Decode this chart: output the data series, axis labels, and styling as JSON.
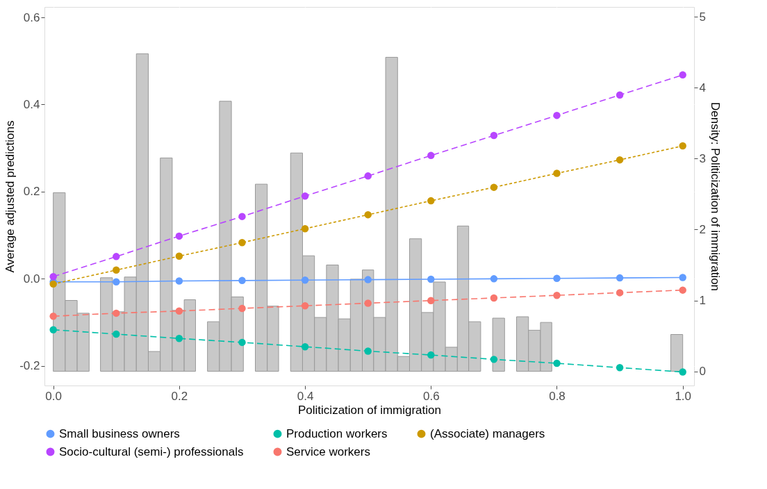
{
  "chart_data": {
    "type": "line",
    "xlabel": "Politicization of immigration",
    "ylabel": "Average adjusted predictions",
    "y2label": "Density: Politicization of immigration",
    "x": [
      0,
      0.1,
      0.2,
      0.3,
      0.4,
      0.5,
      0.6,
      0.7,
      0.8,
      0.9,
      1.0
    ],
    "xlim": [
      -0.014,
      1.018
    ],
    "xticks": [
      {
        "value": 0,
        "label": "0.0"
      },
      0.2,
      0.4,
      0.6,
      0.8,
      {
        "value": 1,
        "label": "1.0"
      }
    ],
    "ylim": [
      -0.245,
      0.624
    ],
    "yticks": [
      {
        "value": -0.2,
        "label": "-0.2"
      },
      {
        "value": 0,
        "label": "0.0"
      },
      0.2,
      0.4,
      0.6
    ],
    "y2lim": [
      -0.2,
      5.14
    ],
    "y2ticks": [
      0,
      1,
      2,
      3,
      4,
      5
    ],
    "grid": true,
    "legend": "bottom",
    "marker": "circle",
    "series": [
      {
        "type": "histogram",
        "axis": "y2",
        "color": "#c8c8c8",
        "bins": [
          0,
          0.019,
          0.038,
          0.057,
          0.075,
          0.094,
          0.113,
          0.132,
          0.151,
          0.17,
          0.189,
          0.208,
          0.226,
          0.245,
          0.264,
          0.283,
          0.302,
          0.321,
          0.34,
          0.358,
          0.377,
          0.396,
          0.415,
          0.434,
          0.453,
          0.472,
          0.491,
          0.509,
          0.528,
          0.547,
          0.566,
          0.585,
          0.604,
          0.623,
          0.642,
          0.66,
          0.679,
          0.698,
          0.717,
          0.736,
          0.755,
          0.774,
          0.792,
          0.981,
          1.0
        ],
        "values": [
          2.52,
          1.0,
          0.82,
          0,
          1.32,
          0.84,
          1.33,
          4.48,
          0.28,
          3.01,
          0.86,
          1.01,
          0,
          0.7,
          3.81,
          1.05,
          0,
          2.64,
          0.92,
          0,
          3.08,
          1.63,
          0.76,
          1.5,
          0.74,
          1.3,
          1.43,
          0.76,
          4.43,
          0.21,
          1.87,
          0.83,
          1.26,
          0.34,
          2.05,
          0.7,
          0,
          0.75,
          0,
          0.77,
          0.58,
          0.69,
          0,
          0.52
        ]
      },
      {
        "name": "Small business owners",
        "color": "#619cff",
        "line_style": "solid",
        "values": [
          -0.007,
          -0.007,
          -0.005,
          -0.004,
          -0.003,
          -0.002,
          -0.001,
          0.0,
          0.001,
          0.002,
          0.003
        ]
      },
      {
        "name": "Production workers",
        "color": "#00bfa8",
        "line_style": "dashed",
        "values": [
          -0.117,
          -0.127,
          -0.137,
          -0.146,
          -0.156,
          -0.166,
          -0.175,
          -0.185,
          -0.194,
          -0.204,
          -0.214
        ]
      },
      {
        "name": "(Associate) managers",
        "color": "#cc9900",
        "line_style": "dotted",
        "values": [
          -0.012,
          0.02,
          0.052,
          0.083,
          0.115,
          0.147,
          0.179,
          0.21,
          0.242,
          0.273,
          0.305
        ]
      },
      {
        "name": "Socio-cultural (semi-) professionals",
        "color": "#b845ff",
        "line_style": "dashed",
        "values": [
          0.005,
          0.051,
          0.098,
          0.143,
          0.19,
          0.236,
          0.283,
          0.329,
          0.375,
          0.422,
          0.468
        ]
      },
      {
        "name": "Service workers",
        "color": "#f8766d",
        "line_style": "dashed",
        "values": [
          -0.086,
          -0.079,
          -0.074,
          -0.068,
          -0.062,
          -0.056,
          -0.05,
          -0.044,
          -0.038,
          -0.032,
          -0.026
        ]
      }
    ]
  }
}
